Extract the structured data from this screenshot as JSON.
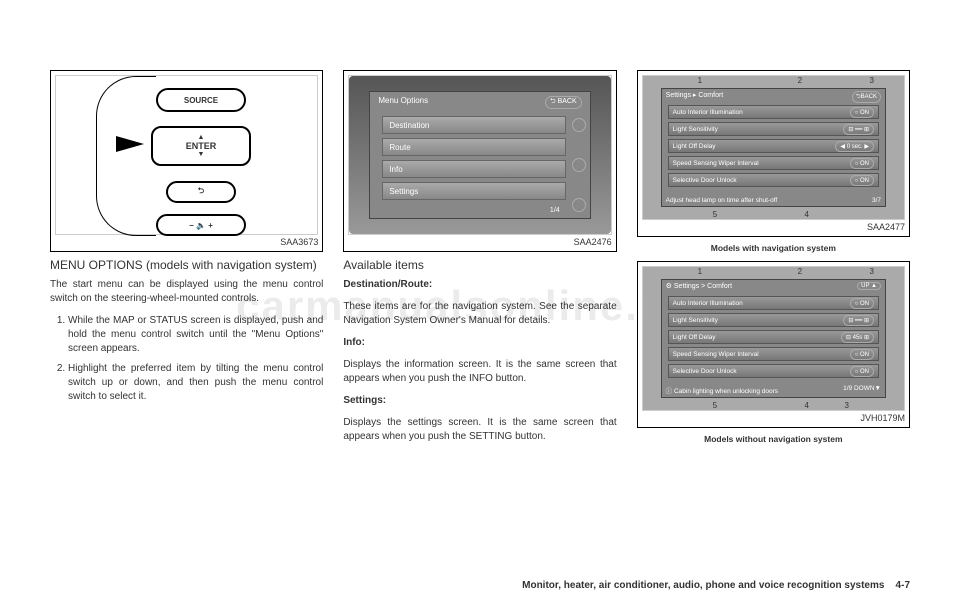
{
  "fig1": {
    "code": "SAA3673",
    "btn_source": "SOURCE",
    "btn_enter": "ENTER",
    "btn_back": "⮌",
    "btn_vol": "− 🔈 +"
  },
  "fig2": {
    "code": "SAA2476",
    "title": "Menu Options",
    "back": "⮌ BACK",
    "items": [
      "Destination",
      "Route",
      "Info",
      "Settings"
    ],
    "pager": "1/4"
  },
  "fig3": {
    "code": "SAA2477",
    "caption": "Models with navigation system",
    "header": "Settings ▸ Comfort",
    "back": "⮌BACK",
    "rows": [
      {
        "label": "Auto Interior Illumination",
        "val": "○ ON"
      },
      {
        "label": "Light Sensitivity",
        "val": "⊟ ━━ ⊞"
      },
      {
        "label": "Light Off Delay",
        "val": "◀ 0 sec. ▶"
      },
      {
        "label": "Speed Sensing Wiper Interval",
        "val": "○ ON"
      },
      {
        "label": "Selective Door Unlock",
        "val": "○ ON"
      }
    ],
    "footer_left": "Adjust head lamp on time after shut-off",
    "footer_right": "3/7",
    "nums": {
      "n1": "1",
      "n2": "2",
      "n3": "3",
      "n4": "4",
      "n5": "5"
    }
  },
  "fig4": {
    "code": "JVH0179M",
    "caption": "Models without navigation system",
    "header": "⚙ Settings > Comfort",
    "back": "UP ▲",
    "rows": [
      {
        "label": "Auto Interior Illumination",
        "val": "○  ON"
      },
      {
        "label": "Light Sensitivity",
        "val": "⊟ ━━ ⊞"
      },
      {
        "label": "Light Off Delay",
        "val": "⊟ 45s ⊞"
      },
      {
        "label": "Speed Sensing Wiper Interval",
        "val": "○  ON"
      },
      {
        "label": "Selective Door Unlock",
        "val": "○  ON"
      }
    ],
    "footer_left": "ⓘ Cabin lighting when unlocking doors",
    "footer_right": "1/9  DOWN▼",
    "nums": {
      "n1": "1",
      "n2": "2",
      "n3": "3",
      "n4": "4",
      "n5": "5",
      "n6": "3"
    }
  },
  "col1": {
    "heading": "MENU OPTIONS (models with navigation system)",
    "p1": "The start menu can be displayed using the menu control switch on the steering-wheel-mounted controls.",
    "li1": "While the MAP or STATUS screen is displayed, push and hold the menu control switch until the \"Menu Options\" screen appears.",
    "li2": "Highlight the preferred item by tilting the menu control switch up or down, and then push the menu control switch to select it."
  },
  "col2": {
    "h_avail": "Available items",
    "h_dest": "Destination/Route:",
    "p_dest": "These items are for the navigation system. See the separate Navigation System Owner's Manual for details.",
    "h_info": "Info:",
    "p_info": "Displays the information screen. It is the same screen that appears when you push the INFO button.",
    "h_set": "Settings:",
    "p_set": "Displays the settings screen. It is the same screen that appears when you push the SETTING button."
  },
  "footer": {
    "text": "Monitor, heater, air conditioner, audio, phone and voice recognition systems",
    "page": "4-7"
  },
  "watermark": "carmanualsonline.info"
}
